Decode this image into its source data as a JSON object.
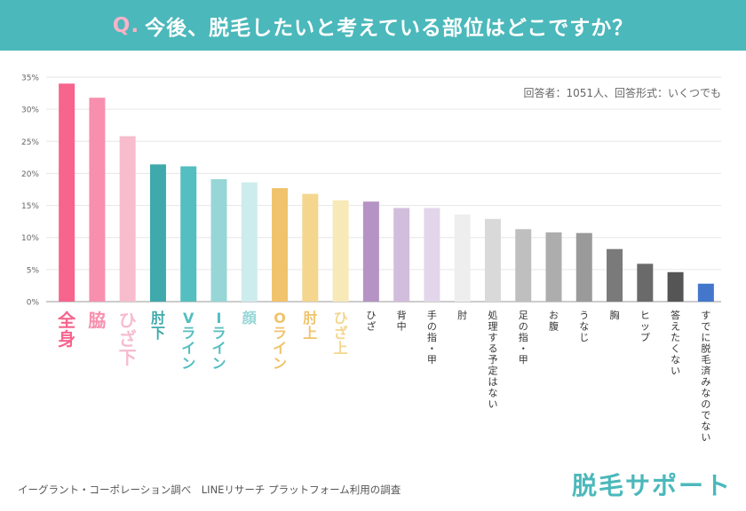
{
  "header": {
    "q_mark": "Q.",
    "title": "今後、脱毛したいと考えている部位はどこですか？"
  },
  "note": "回答者：1051人、回答形式：いくつでも",
  "source": "イーグラント・コーポレーション調べ　LINEリサーチ プラットフォーム利用の調査",
  "logo": "脱毛サポート",
  "chart_data": {
    "type": "bar",
    "title": "今後、脱毛したいと考えている部位はどこですか？",
    "ylim": [
      0,
      35
    ],
    "y_ticks": [
      "0%",
      "5%",
      "10%",
      "15%",
      "20%",
      "25%",
      "30%",
      "35%"
    ],
    "grid": true,
    "unit": "%",
    "categories": [
      "全身",
      "脇",
      "ひざ下",
      "肘下",
      "Vライン",
      "Iライン",
      "顔",
      "Oライン",
      "肘上",
      "ひざ上",
      "ひざ",
      "背中",
      "手の指・甲",
      "肘",
      "処理する予定はない",
      "足の指・甲",
      "お腹",
      "うなじ",
      "胸",
      "ヒップ",
      "答えたくない",
      "すでに脱毛済みなのでない"
    ],
    "values": [
      34.0,
      31.8,
      25.8,
      21.4,
      21.1,
      19.1,
      18.6,
      17.7,
      16.8,
      15.8,
      15.6,
      14.6,
      14.6,
      13.6,
      12.9,
      11.3,
      10.8,
      10.7,
      8.2,
      5.9,
      4.6,
      2.8
    ],
    "bar_colors": [
      "#f7648e",
      "#f88fae",
      "#f7bccd",
      "#3fa9ab",
      "#55bec0",
      "#96d6d7",
      "#cdeced",
      "#f0c36c",
      "#f4d68e",
      "#f8e9b8",
      "#b593c4",
      "#d2bedc",
      "#e3d6ea",
      "#eeeeee",
      "#d9d9d9",
      "#bfbfbf",
      "#adadad",
      "#9a9a9a",
      "#7a7a7a",
      "#6a6a6a",
      "#555555",
      "#4477cc"
    ],
    "label_colors": [
      "#f7648e",
      "#f88fae",
      "#f7bccd",
      "#3fa9ab",
      "#55bec0",
      "#55bec0",
      "#96d6d7",
      "#f0c36c",
      "#f0c36c",
      "#f4d68e",
      "#333333",
      "#333333",
      "#333333",
      "#333333",
      "#333333",
      "#333333",
      "#333333",
      "#333333",
      "#333333",
      "#333333",
      "#333333",
      "#333333"
    ]
  }
}
